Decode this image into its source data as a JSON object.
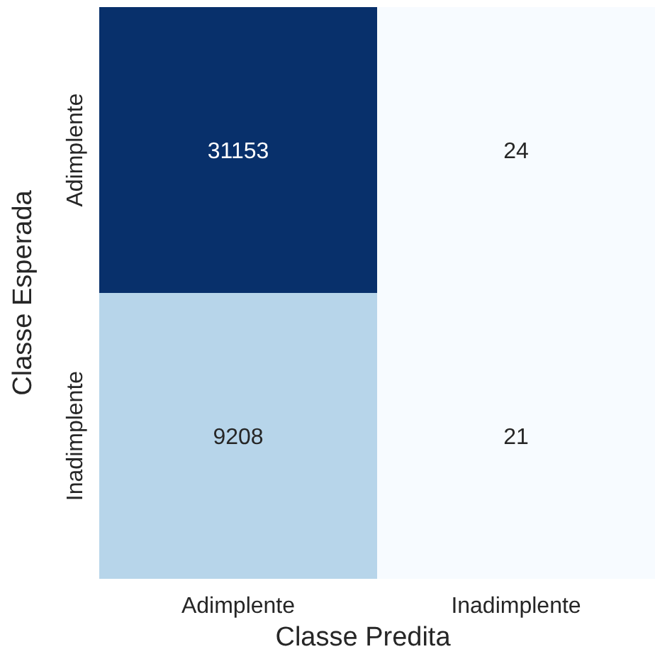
{
  "chart_data": {
    "type": "heatmap",
    "xlabel": "Classe Predita",
    "ylabel": "Classe Esperada",
    "categories": [
      "Adimplente",
      "Inadimplente"
    ],
    "y_categories": [
      "Adimplente",
      "Inadimplente"
    ],
    "cells": [
      [
        31153,
        24
      ],
      [
        9208,
        21
      ]
    ],
    "data_labels": true
  }
}
